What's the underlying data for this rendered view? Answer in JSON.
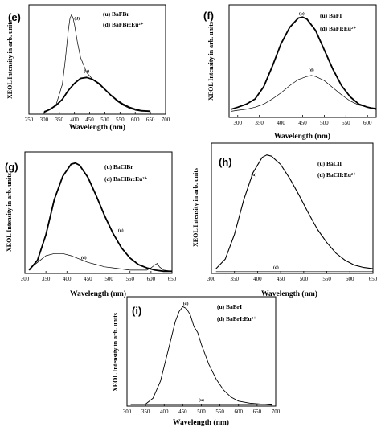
{
  "chart_data": [
    {
      "id": "e",
      "type": "line",
      "panel_label": "(e)",
      "xlabel": "Wavelength (nm)",
      "ylabel": "XEOL Intensity in arb. units",
      "xlim": [
        250,
        700
      ],
      "ylim": [
        0,
        1.1
      ],
      "xticks": [
        250,
        300,
        350,
        400,
        450,
        500,
        550,
        600,
        650,
        700
      ],
      "legend": {
        "position": "top-right",
        "entries": [
          "(u) BaFBr",
          "(d) BaFBr:Eu²⁺"
        ]
      },
      "series": [
        {
          "curve_label": "(u)",
          "label_at": [
            440,
            0.42
          ],
          "width": 1.8,
          "x": [
            300,
            320,
            340,
            360,
            380,
            400,
            420,
            440,
            460,
            480,
            500,
            520,
            540,
            560,
            580,
            600,
            620,
            650
          ],
          "y": [
            0.02,
            0.05,
            0.09,
            0.15,
            0.24,
            0.31,
            0.36,
            0.37,
            0.35,
            0.31,
            0.25,
            0.19,
            0.14,
            0.1,
            0.07,
            0.05,
            0.035,
            0.03
          ]
        },
        {
          "curve_label": "(d)",
          "label_at": [
            408,
            0.95
          ],
          "width": 0.7,
          "x": [
            300,
            320,
            340,
            360,
            370,
            380,
            385,
            390,
            395,
            400,
            410,
            420,
            440,
            460,
            480,
            500,
            520,
            540,
            560,
            580,
            600,
            620,
            650
          ],
          "y": [
            0.03,
            0.05,
            0.1,
            0.3,
            0.55,
            0.85,
            0.96,
            1.0,
            0.97,
            0.9,
            0.72,
            0.57,
            0.42,
            0.35,
            0.3,
            0.25,
            0.19,
            0.13,
            0.09,
            0.06,
            0.04,
            0.03,
            0.03
          ]
        }
      ]
    },
    {
      "id": "f",
      "type": "line",
      "panel_label": "(f)",
      "xlabel": "Wavelength (nm)",
      "ylabel": "XEOL Intensity in arb. units",
      "xlim": [
        280,
        620
      ],
      "ylim": [
        0,
        1.1
      ],
      "xticks": [
        300,
        350,
        400,
        450,
        500,
        550,
        600
      ],
      "legend": {
        "position": "top-right",
        "entries": [
          "(u) BaFI",
          "(d) BaFI:Eu²⁺"
        ]
      },
      "series": [
        {
          "curve_label": "(u)",
          "label_at": [
            448,
            1.0
          ],
          "width": 1.8,
          "x": [
            285,
            300,
            320,
            340,
            360,
            380,
            400,
            420,
            440,
            450,
            460,
            480,
            500,
            520,
            540,
            560,
            580,
            600,
            620
          ],
          "y": [
            0.08,
            0.1,
            0.13,
            0.18,
            0.3,
            0.5,
            0.72,
            0.88,
            0.97,
            0.98,
            0.96,
            0.85,
            0.66,
            0.47,
            0.31,
            0.2,
            0.13,
            0.1,
            0.08
          ]
        },
        {
          "curve_label": "(d)",
          "label_at": [
            470,
            0.45
          ],
          "width": 0.7,
          "x": [
            285,
            300,
            320,
            340,
            360,
            380,
            400,
            420,
            440,
            460,
            470,
            480,
            500,
            520,
            540,
            560,
            580,
            600,
            620
          ],
          "y": [
            0.06,
            0.07,
            0.08,
            0.1,
            0.13,
            0.18,
            0.24,
            0.31,
            0.37,
            0.4,
            0.41,
            0.4,
            0.36,
            0.29,
            0.22,
            0.16,
            0.12,
            0.1,
            0.09
          ]
        }
      ]
    },
    {
      "id": "g",
      "type": "line",
      "panel_label": "(g)",
      "xlabel": "Wavelength (nm)",
      "ylabel": "XEOL Intensity in arb. units",
      "xlim": [
        300,
        650
      ],
      "ylim": [
        0,
        1.1
      ],
      "xticks": [
        300,
        350,
        400,
        450,
        500,
        550,
        600,
        650
      ],
      "legend": {
        "position": "top-right",
        "entries": [
          "(u) BaClBr",
          "(d) BaClBr:Eu²⁺"
        ]
      },
      "series": [
        {
          "curve_label": "(u)",
          "label_at": [
            528,
            0.38
          ],
          "width": 1.8,
          "x": [
            310,
            330,
            350,
            370,
            390,
            410,
            420,
            430,
            450,
            470,
            490,
            510,
            530,
            550,
            570,
            590,
            610,
            630,
            650
          ],
          "y": [
            0.03,
            0.12,
            0.35,
            0.67,
            0.88,
            0.99,
            1.0,
            0.98,
            0.87,
            0.7,
            0.52,
            0.36,
            0.23,
            0.14,
            0.08,
            0.05,
            0.03,
            0.02,
            0.02
          ]
        },
        {
          "curve_label": "(d)",
          "label_at": [
            440,
            0.13
          ],
          "width": 0.7,
          "x": [
            310,
            330,
            350,
            370,
            390,
            410,
            430,
            450,
            470,
            490,
            510,
            530,
            550,
            570,
            590,
            600,
            610,
            615,
            620,
            630,
            650
          ],
          "y": [
            0.04,
            0.1,
            0.16,
            0.18,
            0.18,
            0.16,
            0.13,
            0.1,
            0.08,
            0.06,
            0.05,
            0.04,
            0.03,
            0.03,
            0.03,
            0.05,
            0.08,
            0.09,
            0.06,
            0.03,
            0.02
          ]
        }
      ]
    },
    {
      "id": "h",
      "type": "line",
      "panel_label": "(h)",
      "xlabel": "Wavelength (nm)",
      "ylabel": "XEOL Intensity in arb. units",
      "xlim": [
        300,
        650
      ],
      "ylim": [
        0,
        1.1
      ],
      "xticks": [
        300,
        350,
        400,
        450,
        500,
        550,
        600,
        650
      ],
      "legend": {
        "position": "top-right",
        "entries": [
          "(u) BaClI",
          "(d) BaClI:Eu²⁺"
        ]
      },
      "series": [
        {
          "curve_label": "(u)",
          "label_at": [
            392,
            0.82
          ],
          "width": 1.1,
          "x": [
            310,
            330,
            350,
            370,
            390,
            410,
            420,
            430,
            450,
            470,
            490,
            510,
            530,
            550,
            570,
            590,
            610,
            630,
            650
          ],
          "y": [
            0.04,
            0.12,
            0.33,
            0.62,
            0.85,
            0.98,
            1.0,
            0.99,
            0.92,
            0.8,
            0.66,
            0.51,
            0.37,
            0.26,
            0.17,
            0.11,
            0.07,
            0.05,
            0.04
          ]
        },
        {
          "curve_label": "(d)",
          "label_at": [
            440,
            0.04
          ],
          "width": 0.7,
          "x": [
            310,
            650
          ],
          "y": [
            0.015,
            0.015
          ]
        }
      ]
    },
    {
      "id": "i",
      "type": "line",
      "panel_label": "(i)",
      "xlabel": "Wavelength (nm)",
      "ylabel": "XEOL Intensity in arb. units",
      "xlim": [
        300,
        700
      ],
      "ylim": [
        0,
        1.1
      ],
      "xticks": [
        300,
        350,
        400,
        450,
        500,
        550,
        600,
        650,
        700
      ],
      "legend": {
        "position": "top-right",
        "entries": [
          "(u) BaBrI",
          "(d) BaBrI:Eu²⁺"
        ]
      },
      "series": [
        {
          "curve_label": "(d)",
          "label_at": [
            458,
            1.02
          ],
          "width": 0.9,
          "x": [
            350,
            370,
            390,
            410,
            430,
            440,
            450,
            460,
            470,
            480,
            490,
            500,
            520,
            540,
            560,
            580,
            600,
            630,
            660,
            690
          ],
          "y": [
            0.02,
            0.08,
            0.25,
            0.55,
            0.85,
            0.95,
            1.0,
            0.98,
            0.92,
            0.8,
            0.74,
            0.62,
            0.42,
            0.27,
            0.16,
            0.09,
            0.05,
            0.03,
            0.02,
            0.01
          ]
        },
        {
          "curve_label": "(u)",
          "label_at": [
            500,
            0.05
          ],
          "width": 0.7,
          "x": [
            310,
            690
          ],
          "y": [
            0.015,
            0.015
          ]
        }
      ]
    }
  ]
}
